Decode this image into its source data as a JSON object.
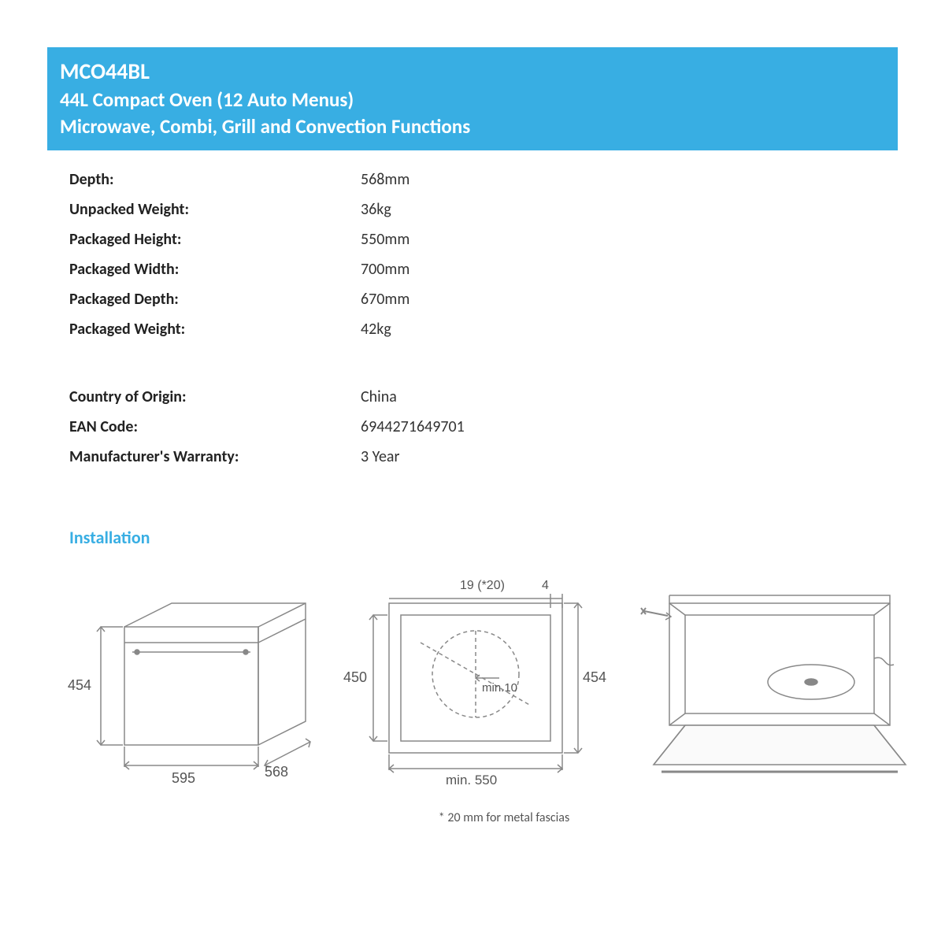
{
  "colors": {
    "header_bg": "#38aee3",
    "header_text": "#ffffff",
    "accent": "#38aee3",
    "text": "#333333",
    "label": "#222222",
    "diagram_stroke": "#888888",
    "diagram_text": "#555555"
  },
  "header": {
    "model": "MCO44BL",
    "line2": "44L Compact Oven (12 Auto Menus)",
    "line3": "Microwave, Combi, Grill and Convection Functions"
  },
  "specs_top": [
    {
      "label": "Depth:",
      "value": "568mm"
    },
    {
      "label": "Unpacked Weight:",
      "value": "36kg"
    },
    {
      "label": "Packaged Height:",
      "value": "550mm"
    },
    {
      "label": "Packaged Width:",
      "value": "700mm"
    },
    {
      "label": "Packaged Depth:",
      "value": "670mm"
    },
    {
      "label": "Packaged Weight:",
      "value": "42kg"
    }
  ],
  "specs_bottom": [
    {
      "label": "Country of Origin:",
      "value": "China"
    },
    {
      "label": "EAN Code:",
      "value": "6944271649701"
    },
    {
      "label": "Manufacturer's Warranty:",
      "value": "3 Year"
    }
  ],
  "installation": {
    "title": "Installation",
    "footnote": "* 20 mm for metal fascias",
    "diagram1": {
      "height_label": "454",
      "width_label": "595",
      "depth_label": "568"
    },
    "diagram2": {
      "top_left": "19 (*20)",
      "top_right": "4",
      "left_height": "450",
      "right_height": "454",
      "inner": "min.10",
      "bottom": "min. 550"
    }
  }
}
